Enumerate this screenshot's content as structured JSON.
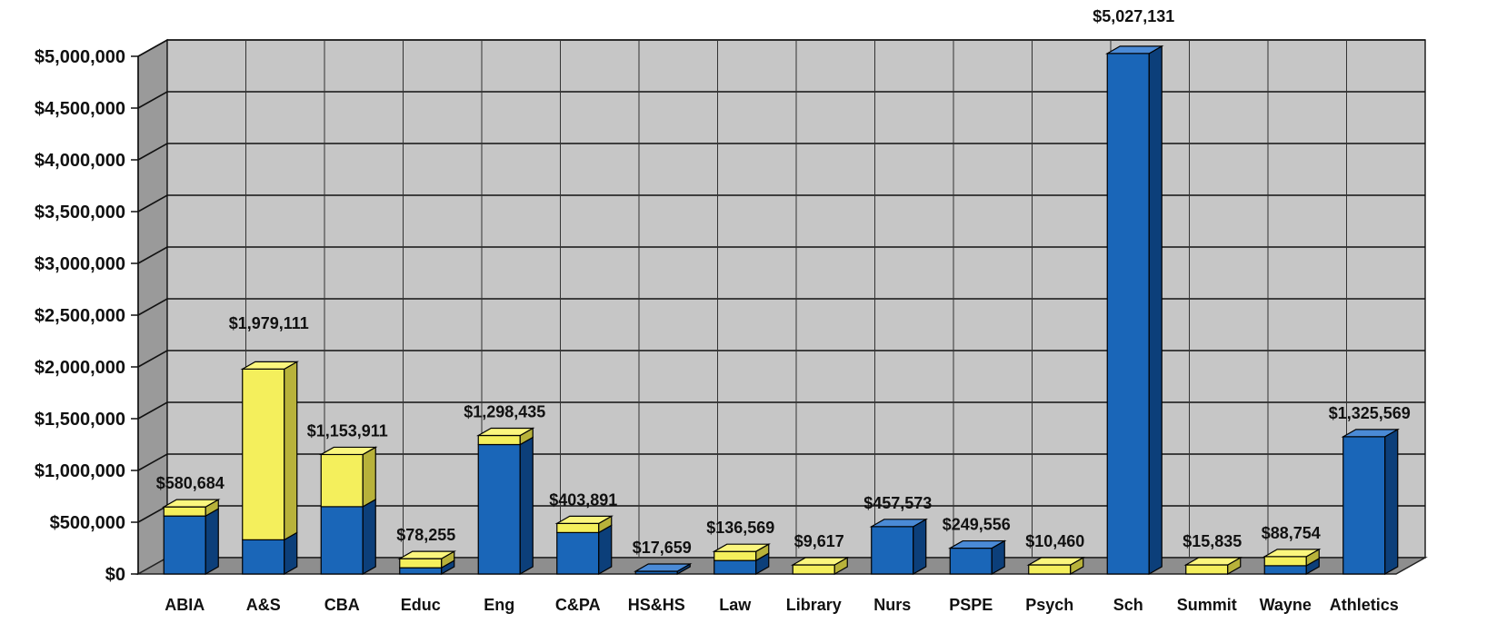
{
  "chart_data": {
    "type": "bar",
    "stacked": true,
    "style": "3d",
    "title": "",
    "xlabel": "",
    "ylabel": "",
    "ylim": [
      0,
      5000000
    ],
    "yticks": [
      "$0",
      "$500,000",
      "$1,000,000",
      "$1,500,000",
      "$2,000,000",
      "$2,500,000",
      "$3,000,000",
      "$3,500,000",
      "$4,000,000",
      "$4,500,000",
      "$5,000,000"
    ],
    "grid": true,
    "legend": "none",
    "categories": [
      "ABIA",
      "A&S",
      "CBA",
      "Educ",
      "Eng",
      "C&PA",
      "HS&HS",
      "Law",
      "Library",
      "Nurs",
      "PSPE",
      "Psych",
      "Sch",
      "Summit",
      "Wayne",
      "Athletics"
    ],
    "series": [
      {
        "values": [
          560000,
          330000,
          650000,
          60000,
          1250000,
          400000,
          17659,
          130000,
          0,
          457573,
          249556,
          0,
          5027131,
          0,
          80000,
          1325569
        ]
      },
      {
        "values": [
          20684,
          1649111,
          503911,
          18255,
          48435,
          3891,
          0,
          6569,
          9617,
          0,
          0,
          10460,
          0,
          15835,
          8754,
          0
        ]
      }
    ],
    "totals": [
      580684,
      1979111,
      1153911,
      78255,
      1298435,
      403891,
      17659,
      136569,
      9617,
      457573,
      249556,
      10460,
      5027131,
      15835,
      88754,
      1325569
    ],
    "data_labels": [
      "$580,684",
      "$1,979,111",
      "$1,153,911",
      "$78,255",
      "$1,298,435",
      "$403,891",
      "$17,659",
      "$136,569",
      "$9,617",
      "$457,573",
      "$249,556",
      "$10,460",
      "$5,027,131",
      "$15,835",
      "$88,754",
      "$1,325,569"
    ],
    "colors": {
      "blue": "#1a66b8",
      "blue_dark": "#0c3f7a",
      "blue_top": "#4a8ad6",
      "yellow": "#f4ef5c",
      "yellow_dark": "#b8b23a",
      "yellow_top": "#fbf67e",
      "plot_bg": "#c6c6c6",
      "wall": "#9a9a9a",
      "floor": "#8e8e8e",
      "grid": "#111111"
    }
  }
}
